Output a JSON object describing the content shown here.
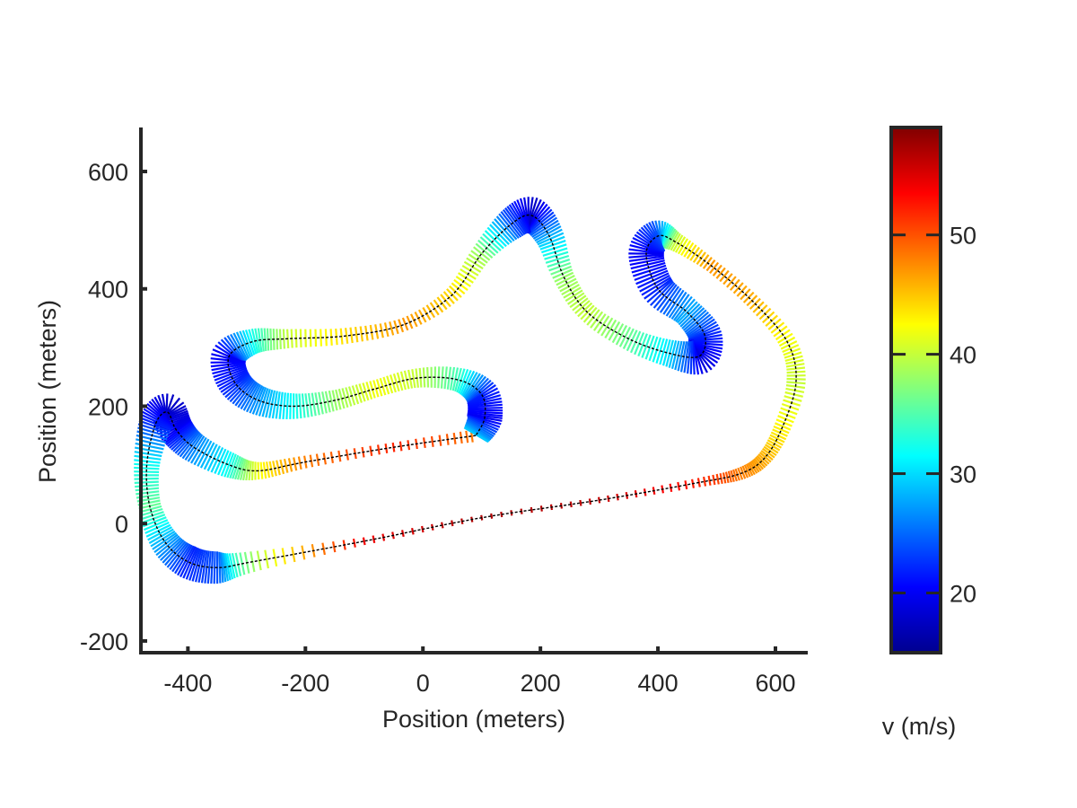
{
  "chart_data": {
    "type": "scatter",
    "xlabel": "Position (meters)",
    "ylabel": "Position (meters)",
    "xlim": [
      -480,
      655
    ],
    "ylim": [
      -220,
      675
    ],
    "xticks": [
      -400,
      -200,
      0,
      200,
      400,
      600
    ],
    "yticks": [
      -200,
      0,
      200,
      400,
      600
    ],
    "xtick_labels": [
      "-400",
      "-200",
      "0",
      "200",
      "400",
      "600"
    ],
    "ytick_labels": [
      "-200",
      "0",
      "200",
      "400",
      "600"
    ],
    "grid": false,
    "colorbar": {
      "label": "v (m/s)",
      "colormap": "jet",
      "range": [
        15,
        59
      ],
      "ticks": [
        20,
        30,
        40,
        50
      ],
      "tick_labels": [
        "20",
        "30",
        "40",
        "50"
      ]
    },
    "track": {
      "description_of_series": "race track centerline colored by velocity",
      "points": [
        {
          "x": 90,
          "y": 150,
          "v": 48
        },
        {
          "x": -50,
          "y": 130,
          "v": 52
        },
        {
          "x": -200,
          "y": 105,
          "v": 48
        },
        {
          "x": -280,
          "y": 90,
          "v": 42
        },
        {
          "x": -330,
          "y": 100,
          "v": 32
        },
        {
          "x": -390,
          "y": 130,
          "v": 26
        },
        {
          "x": -420,
          "y": 160,
          "v": 20
        },
        {
          "x": -435,
          "y": 190,
          "v": 18
        },
        {
          "x": -455,
          "y": 170,
          "v": 22
        },
        {
          "x": -470,
          "y": 100,
          "v": 32
        },
        {
          "x": -465,
          "y": 30,
          "v": 36
        },
        {
          "x": -440,
          "y": -30,
          "v": 28
        },
        {
          "x": -400,
          "y": -65,
          "v": 22
        },
        {
          "x": -350,
          "y": -75,
          "v": 24
        },
        {
          "x": -290,
          "y": -65,
          "v": 38
        },
        {
          "x": -100,
          "y": -30,
          "v": 54
        },
        {
          "x": 100,
          "y": 10,
          "v": 57
        },
        {
          "x": 300,
          "y": 40,
          "v": 56
        },
        {
          "x": 470,
          "y": 70,
          "v": 52
        },
        {
          "x": 540,
          "y": 85,
          "v": 48
        },
        {
          "x": 580,
          "y": 110,
          "v": 46
        },
        {
          "x": 610,
          "y": 160,
          "v": 43
        },
        {
          "x": 635,
          "y": 240,
          "v": 40
        },
        {
          "x": 620,
          "y": 310,
          "v": 42
        },
        {
          "x": 560,
          "y": 380,
          "v": 46
        },
        {
          "x": 490,
          "y": 440,
          "v": 47
        },
        {
          "x": 430,
          "y": 480,
          "v": 40
        },
        {
          "x": 400,
          "y": 490,
          "v": 24
        },
        {
          "x": 380,
          "y": 460,
          "v": 20
        },
        {
          "x": 400,
          "y": 400,
          "v": 22
        },
        {
          "x": 450,
          "y": 360,
          "v": 28
        },
        {
          "x": 480,
          "y": 320,
          "v": 22
        },
        {
          "x": 470,
          "y": 285,
          "v": 19
        },
        {
          "x": 420,
          "y": 290,
          "v": 30
        },
        {
          "x": 350,
          "y": 315,
          "v": 36
        },
        {
          "x": 280,
          "y": 360,
          "v": 40
        },
        {
          "x": 240,
          "y": 420,
          "v": 38
        },
        {
          "x": 215,
          "y": 490,
          "v": 28
        },
        {
          "x": 185,
          "y": 525,
          "v": 18
        },
        {
          "x": 150,
          "y": 510,
          "v": 24
        },
        {
          "x": 100,
          "y": 460,
          "v": 38
        },
        {
          "x": 50,
          "y": 390,
          "v": 44
        },
        {
          "x": -30,
          "y": 340,
          "v": 47
        },
        {
          "x": -130,
          "y": 320,
          "v": 44
        },
        {
          "x": -230,
          "y": 315,
          "v": 40
        },
        {
          "x": -290,
          "y": 310,
          "v": 32
        },
        {
          "x": -330,
          "y": 285,
          "v": 20
        },
        {
          "x": -320,
          "y": 240,
          "v": 22
        },
        {
          "x": -280,
          "y": 210,
          "v": 27
        },
        {
          "x": -220,
          "y": 200,
          "v": 32
        },
        {
          "x": -150,
          "y": 210,
          "v": 38
        },
        {
          "x": -80,
          "y": 230,
          "v": 42
        },
        {
          "x": -10,
          "y": 248,
          "v": 40
        },
        {
          "x": 60,
          "y": 245,
          "v": 34
        },
        {
          "x": 100,
          "y": 220,
          "v": 22
        },
        {
          "x": 105,
          "y": 180,
          "v": 20
        },
        {
          "x": 90,
          "y": 150,
          "v": 30
        }
      ]
    }
  }
}
